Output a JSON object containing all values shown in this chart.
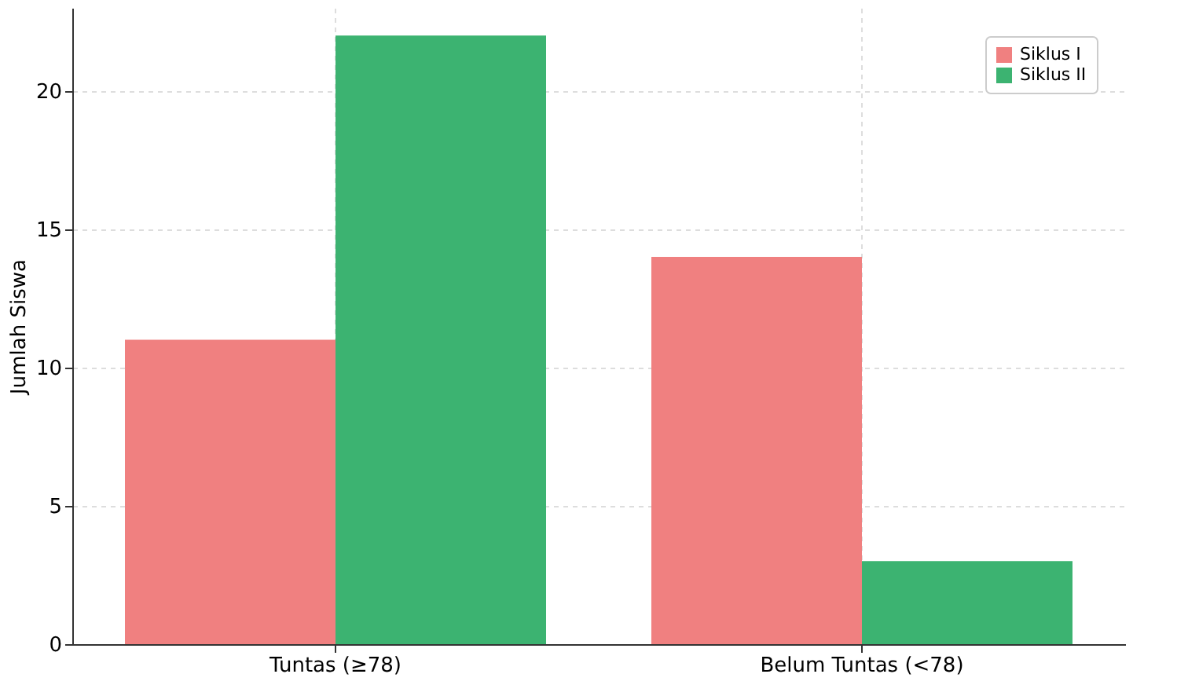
{
  "chart_data": {
    "type": "bar",
    "ylabel": "Jumlah Siswa",
    "categories": [
      "Tuntas (≥78)",
      "Belum Tuntas (<78)"
    ],
    "series": [
      {
        "name": "Siklus I",
        "color": "#f08080",
        "values": [
          11,
          14
        ]
      },
      {
        "name": "Siklus II",
        "color": "#3cb371",
        "values": [
          22,
          3
        ]
      }
    ],
    "ylim": [
      0,
      23
    ],
    "yticks": [
      0,
      5,
      10,
      15,
      20
    ],
    "grid": true,
    "legend": "top right"
  }
}
